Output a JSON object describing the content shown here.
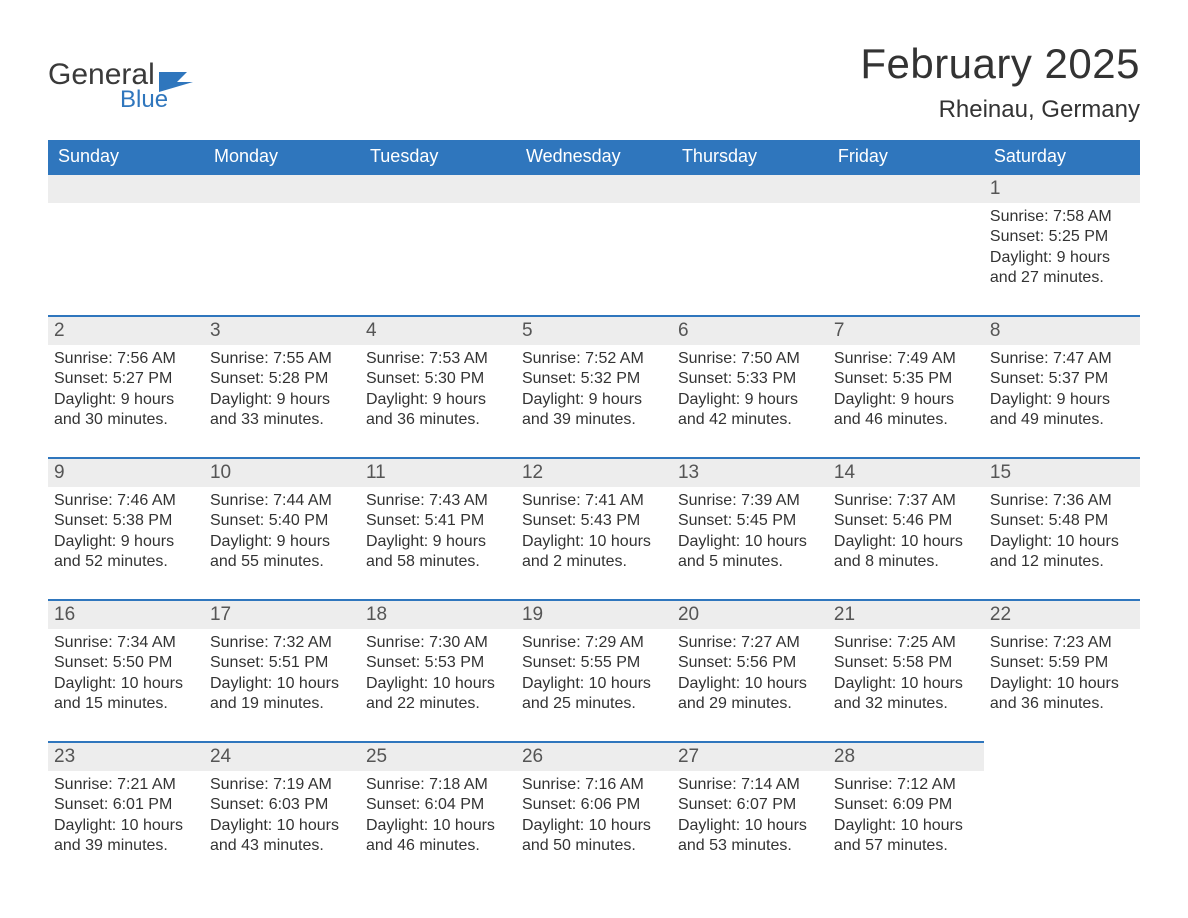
{
  "brand": {
    "text1": "General",
    "text2": "Blue"
  },
  "colors": {
    "header_bg": "#2f76bd",
    "header_text": "#ffffff",
    "rule": "#2f76bd",
    "daynum_bg": "#ededed",
    "body_text": "#333333",
    "page_bg": "#ffffff"
  },
  "title": {
    "month": "February 2025",
    "location": "Rheinau, Germany"
  },
  "day_headers": [
    "Sunday",
    "Monday",
    "Tuesday",
    "Wednesday",
    "Thursday",
    "Friday",
    "Saturday"
  ],
  "weeks": [
    [
      {
        "empty": true
      },
      {
        "empty": true
      },
      {
        "empty": true
      },
      {
        "empty": true
      },
      {
        "empty": true
      },
      {
        "empty": true
      },
      {
        "n": "1",
        "sunrise": "7:58 AM",
        "sunset": "5:25 PM",
        "dl1": "9 hours",
        "dl2": "and 27 minutes."
      }
    ],
    [
      {
        "n": "2",
        "sunrise": "7:56 AM",
        "sunset": "5:27 PM",
        "dl1": "9 hours",
        "dl2": "and 30 minutes."
      },
      {
        "n": "3",
        "sunrise": "7:55 AM",
        "sunset": "5:28 PM",
        "dl1": "9 hours",
        "dl2": "and 33 minutes."
      },
      {
        "n": "4",
        "sunrise": "7:53 AM",
        "sunset": "5:30 PM",
        "dl1": "9 hours",
        "dl2": "and 36 minutes."
      },
      {
        "n": "5",
        "sunrise": "7:52 AM",
        "sunset": "5:32 PM",
        "dl1": "9 hours",
        "dl2": "and 39 minutes."
      },
      {
        "n": "6",
        "sunrise": "7:50 AM",
        "sunset": "5:33 PM",
        "dl1": "9 hours",
        "dl2": "and 42 minutes."
      },
      {
        "n": "7",
        "sunrise": "7:49 AM",
        "sunset": "5:35 PM",
        "dl1": "9 hours",
        "dl2": "and 46 minutes."
      },
      {
        "n": "8",
        "sunrise": "7:47 AM",
        "sunset": "5:37 PM",
        "dl1": "9 hours",
        "dl2": "and 49 minutes."
      }
    ],
    [
      {
        "n": "9",
        "sunrise": "7:46 AM",
        "sunset": "5:38 PM",
        "dl1": "9 hours",
        "dl2": "and 52 minutes."
      },
      {
        "n": "10",
        "sunrise": "7:44 AM",
        "sunset": "5:40 PM",
        "dl1": "9 hours",
        "dl2": "and 55 minutes."
      },
      {
        "n": "11",
        "sunrise": "7:43 AM",
        "sunset": "5:41 PM",
        "dl1": "9 hours",
        "dl2": "and 58 minutes."
      },
      {
        "n": "12",
        "sunrise": "7:41 AM",
        "sunset": "5:43 PM",
        "dl1": "10 hours",
        "dl2": "and 2 minutes."
      },
      {
        "n": "13",
        "sunrise": "7:39 AM",
        "sunset": "5:45 PM",
        "dl1": "10 hours",
        "dl2": "and 5 minutes."
      },
      {
        "n": "14",
        "sunrise": "7:37 AM",
        "sunset": "5:46 PM",
        "dl1": "10 hours",
        "dl2": "and 8 minutes."
      },
      {
        "n": "15",
        "sunrise": "7:36 AM",
        "sunset": "5:48 PM",
        "dl1": "10 hours",
        "dl2": "and 12 minutes."
      }
    ],
    [
      {
        "n": "16",
        "sunrise": "7:34 AM",
        "sunset": "5:50 PM",
        "dl1": "10 hours",
        "dl2": "and 15 minutes."
      },
      {
        "n": "17",
        "sunrise": "7:32 AM",
        "sunset": "5:51 PM",
        "dl1": "10 hours",
        "dl2": "and 19 minutes."
      },
      {
        "n": "18",
        "sunrise": "7:30 AM",
        "sunset": "5:53 PM",
        "dl1": "10 hours",
        "dl2": "and 22 minutes."
      },
      {
        "n": "19",
        "sunrise": "7:29 AM",
        "sunset": "5:55 PM",
        "dl1": "10 hours",
        "dl2": "and 25 minutes."
      },
      {
        "n": "20",
        "sunrise": "7:27 AM",
        "sunset": "5:56 PM",
        "dl1": "10 hours",
        "dl2": "and 29 minutes."
      },
      {
        "n": "21",
        "sunrise": "7:25 AM",
        "sunset": "5:58 PM",
        "dl1": "10 hours",
        "dl2": "and 32 minutes."
      },
      {
        "n": "22",
        "sunrise": "7:23 AM",
        "sunset": "5:59 PM",
        "dl1": "10 hours",
        "dl2": "and 36 minutes."
      }
    ],
    [
      {
        "n": "23",
        "sunrise": "7:21 AM",
        "sunset": "6:01 PM",
        "dl1": "10 hours",
        "dl2": "and 39 minutes."
      },
      {
        "n": "24",
        "sunrise": "7:19 AM",
        "sunset": "6:03 PM",
        "dl1": "10 hours",
        "dl2": "and 43 minutes."
      },
      {
        "n": "25",
        "sunrise": "7:18 AM",
        "sunset": "6:04 PM",
        "dl1": "10 hours",
        "dl2": "and 46 minutes."
      },
      {
        "n": "26",
        "sunrise": "7:16 AM",
        "sunset": "6:06 PM",
        "dl1": "10 hours",
        "dl2": "and 50 minutes."
      },
      {
        "n": "27",
        "sunrise": "7:14 AM",
        "sunset": "6:07 PM",
        "dl1": "10 hours",
        "dl2": "and 53 minutes."
      },
      {
        "n": "28",
        "sunrise": "7:12 AM",
        "sunset": "6:09 PM",
        "dl1": "10 hours",
        "dl2": "and 57 minutes."
      },
      {
        "empty": true,
        "no_bar": true
      }
    ]
  ],
  "labels": {
    "sunrise": "Sunrise:",
    "sunset": "Sunset:",
    "daylight": "Daylight:"
  },
  "typography": {
    "title_fontsize": 42,
    "location_fontsize": 24,
    "dow_fontsize": 18,
    "daynum_fontsize": 19,
    "body_fontsize": 16
  }
}
